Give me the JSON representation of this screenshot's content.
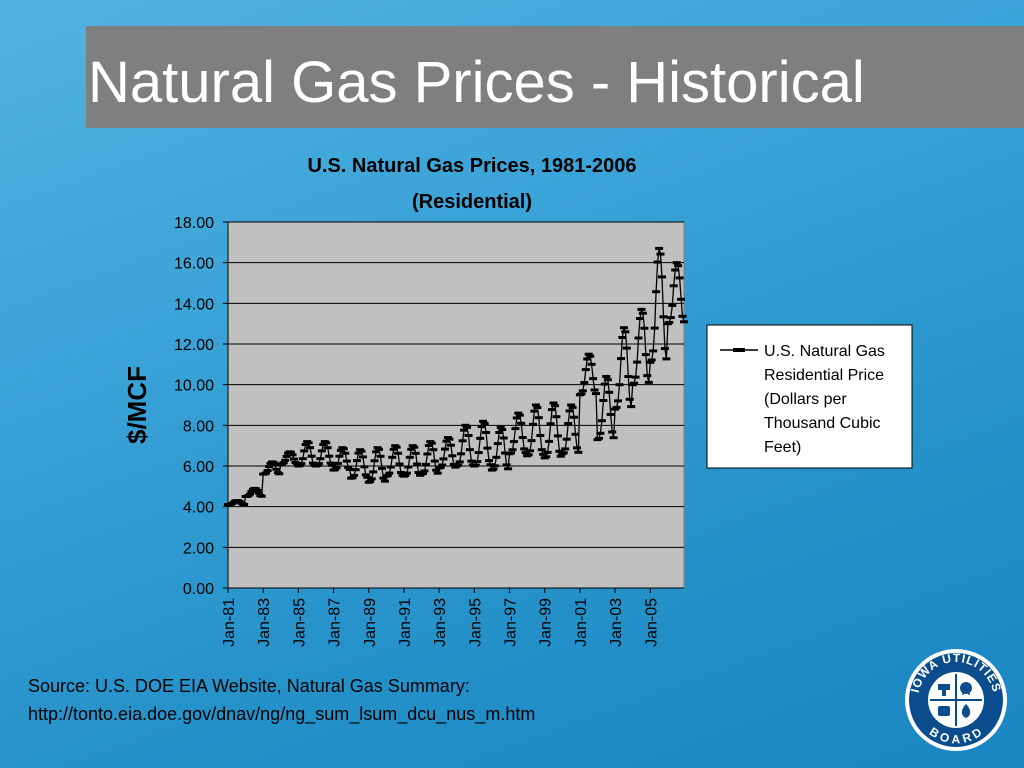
{
  "slide": {
    "title": "Natural Gas Prices - Historical",
    "source_line1": "Source: U.S. DOE EIA Website, Natural Gas Summary:",
    "source_line2": "http://tonto.eia.doe.gov/dnav/ng/ng_sum_lsum_dcu_nus_m.htm"
  },
  "logo": {
    "top_text": "IOWA UTILITIES",
    "bottom_text": "BOARD",
    "icon": "iowa-utilities-board-seal"
  },
  "colors": {
    "background": "#3aa3d7",
    "title_bar": "#7f7f7f",
    "plot_area": "#c0c0c0",
    "series": "#000000"
  },
  "chart_data": {
    "type": "line",
    "title": "U.S. Natural Gas Prices, 1981-2006",
    "subtitle": "(Residential)",
    "xlabel": "",
    "ylabel": "$/MCF",
    "ylim": [
      0,
      18
    ],
    "yticks": [
      "0.00",
      "2.00",
      "4.00",
      "6.00",
      "8.00",
      "10.00",
      "12.00",
      "14.00",
      "16.00",
      "18.00"
    ],
    "xlim": [
      0,
      311
    ],
    "xticks": [
      {
        "label": "Jan-81",
        "index": 0
      },
      {
        "label": "Jan-83",
        "index": 24
      },
      {
        "label": "Jan-85",
        "index": 48
      },
      {
        "label": "Jan-87",
        "index": 72
      },
      {
        "label": "Jan-89",
        "index": 96
      },
      {
        "label": "Jan-91",
        "index": 120
      },
      {
        "label": "Jan-93",
        "index": 144
      },
      {
        "label": "Jan-95",
        "index": 168
      },
      {
        "label": "Jan-97",
        "index": 192
      },
      {
        "label": "Jan-99",
        "index": 216
      },
      {
        "label": "Jan-01",
        "index": 240
      },
      {
        "label": "Jan-03",
        "index": 264
      },
      {
        "label": "Jan-05",
        "index": 288
      }
    ],
    "grid": true,
    "legend": "right",
    "series": [
      {
        "name": "U.S. Natural Gas Residential Price (Dollars per Thousand Cubic Feet)",
        "frequency": "monthly",
        "start": "Jan-81",
        "end": "Dec-06",
        "annual_profile": [
          {
            "year": 1981,
            "winter": 4.1,
            "summer": 4.3
          },
          {
            "year": 1982,
            "winter": 4.5,
            "summer": 4.9
          },
          {
            "year": 1983,
            "winter": 5.6,
            "summer": 6.2
          },
          {
            "year": 1984,
            "winter": 6.1,
            "summer": 6.7
          },
          {
            "year": 1985,
            "winter": 6.0,
            "summer": 7.2
          },
          {
            "year": 1986,
            "winter": 6.0,
            "summer": 7.2
          },
          {
            "year": 1987,
            "winter": 5.8,
            "summer": 6.9
          },
          {
            "year": 1988,
            "winter": 5.4,
            "summer": 6.8
          },
          {
            "year": 1989,
            "winter": 5.2,
            "summer": 6.9
          },
          {
            "year": 1990,
            "winter": 5.5,
            "summer": 7.0
          },
          {
            "year": 1991,
            "winter": 5.5,
            "summer": 7.0
          },
          {
            "year": 1992,
            "winter": 5.6,
            "summer": 7.2
          },
          {
            "year": 1993,
            "winter": 5.9,
            "summer": 7.4
          },
          {
            "year": 1994,
            "winter": 6.0,
            "summer": 8.0
          },
          {
            "year": 1995,
            "winter": 6.0,
            "summer": 8.2
          },
          {
            "year": 1996,
            "winter": 5.8,
            "summer": 7.9
          },
          {
            "year": 1997,
            "winter": 6.6,
            "summer": 8.6
          },
          {
            "year": 1998,
            "winter": 6.5,
            "summer": 9.0
          },
          {
            "year": 1999,
            "winter": 6.4,
            "summer": 9.1
          },
          {
            "year": 2000,
            "winter": 6.6,
            "summer": 9.0
          },
          {
            "year": 2001,
            "winter": 9.5,
            "summer": 11.5
          },
          {
            "year": 2002,
            "winter": 7.3,
            "summer": 10.4
          },
          {
            "year": 2003,
            "winter": 8.8,
            "summer": 12.8
          },
          {
            "year": 2004,
            "winter": 10.0,
            "summer": 13.7
          },
          {
            "year": 2005,
            "winter": 11.1,
            "summer": 16.7
          },
          {
            "year": 2006,
            "winter": 13.0,
            "summer": 16.0
          }
        ]
      }
    ]
  }
}
